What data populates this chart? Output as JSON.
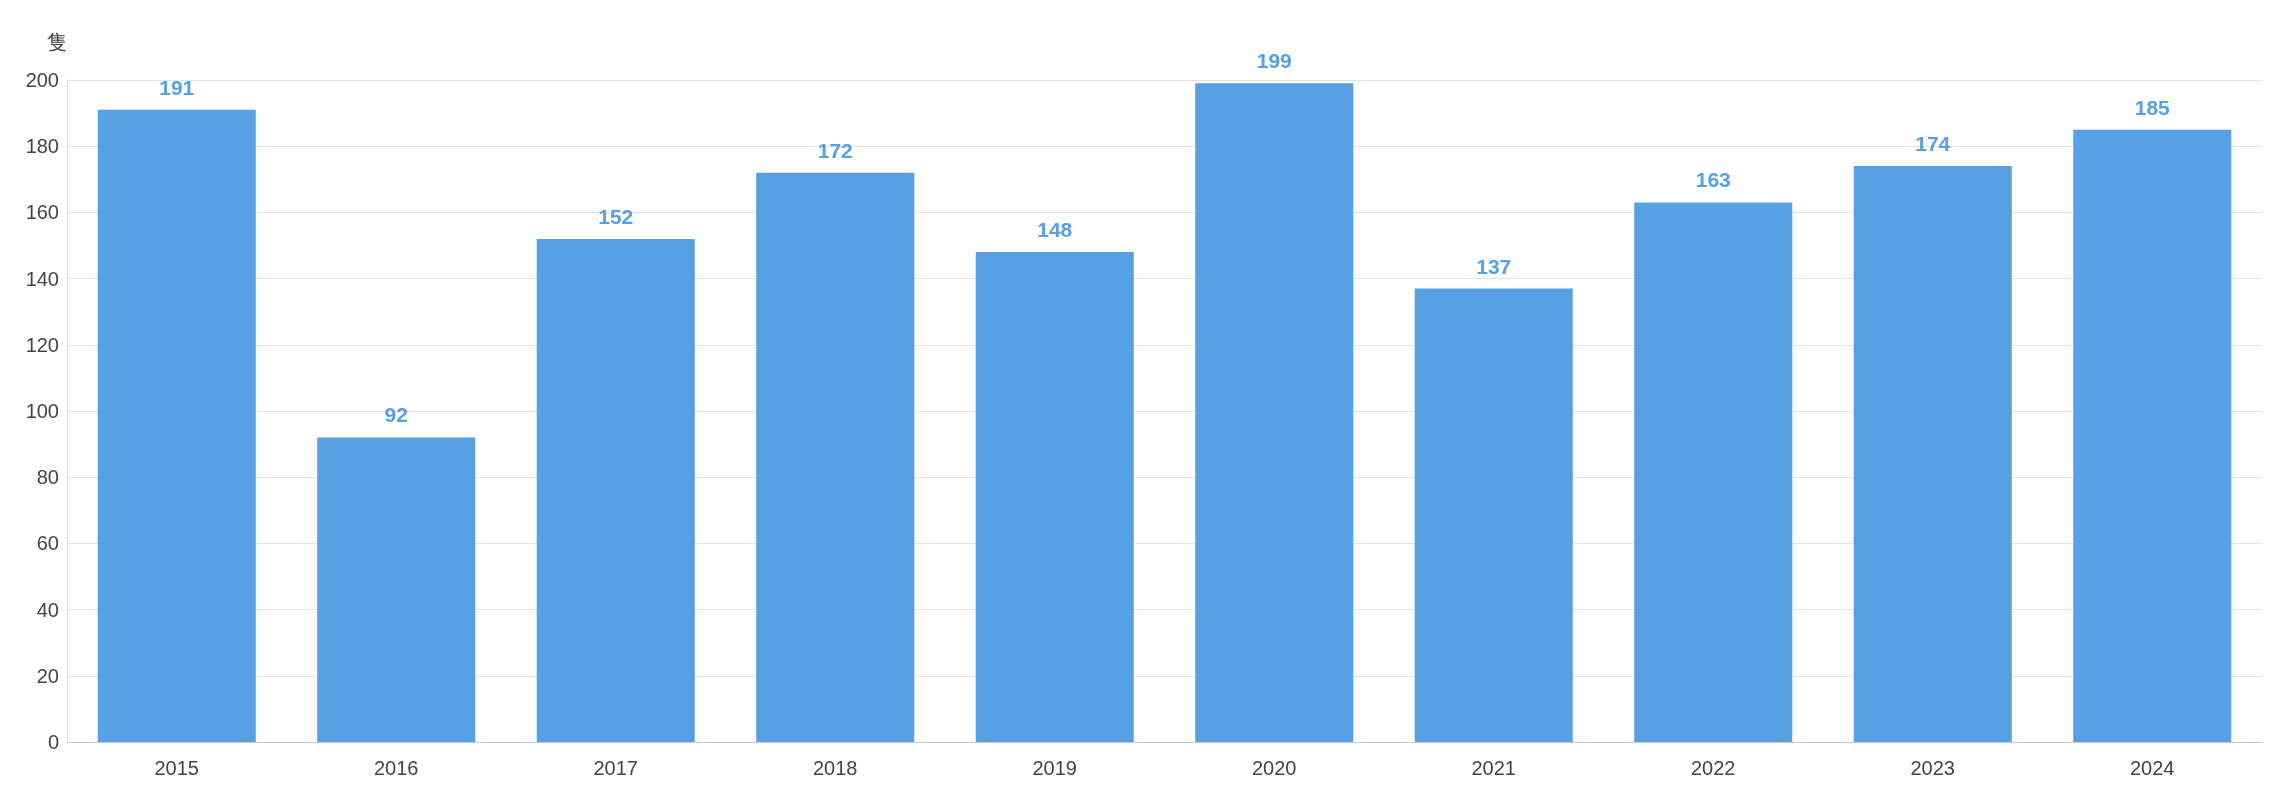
{
  "chart_data": {
    "type": "bar",
    "ylabel": "隻",
    "categories": [
      "2015",
      "2016",
      "2017",
      "2018",
      "2019",
      "2020",
      "2021",
      "2022",
      "2023",
      "2024"
    ],
    "values": [
      191,
      92,
      152,
      172,
      148,
      199,
      137,
      163,
      174,
      185
    ],
    "color": "#56a0e3",
    "ylim": [
      0,
      200
    ],
    "yticks": [
      0,
      20,
      40,
      60,
      80,
      100,
      120,
      140,
      160,
      180,
      200
    ],
    "grid": "y",
    "data_labels": true
  }
}
